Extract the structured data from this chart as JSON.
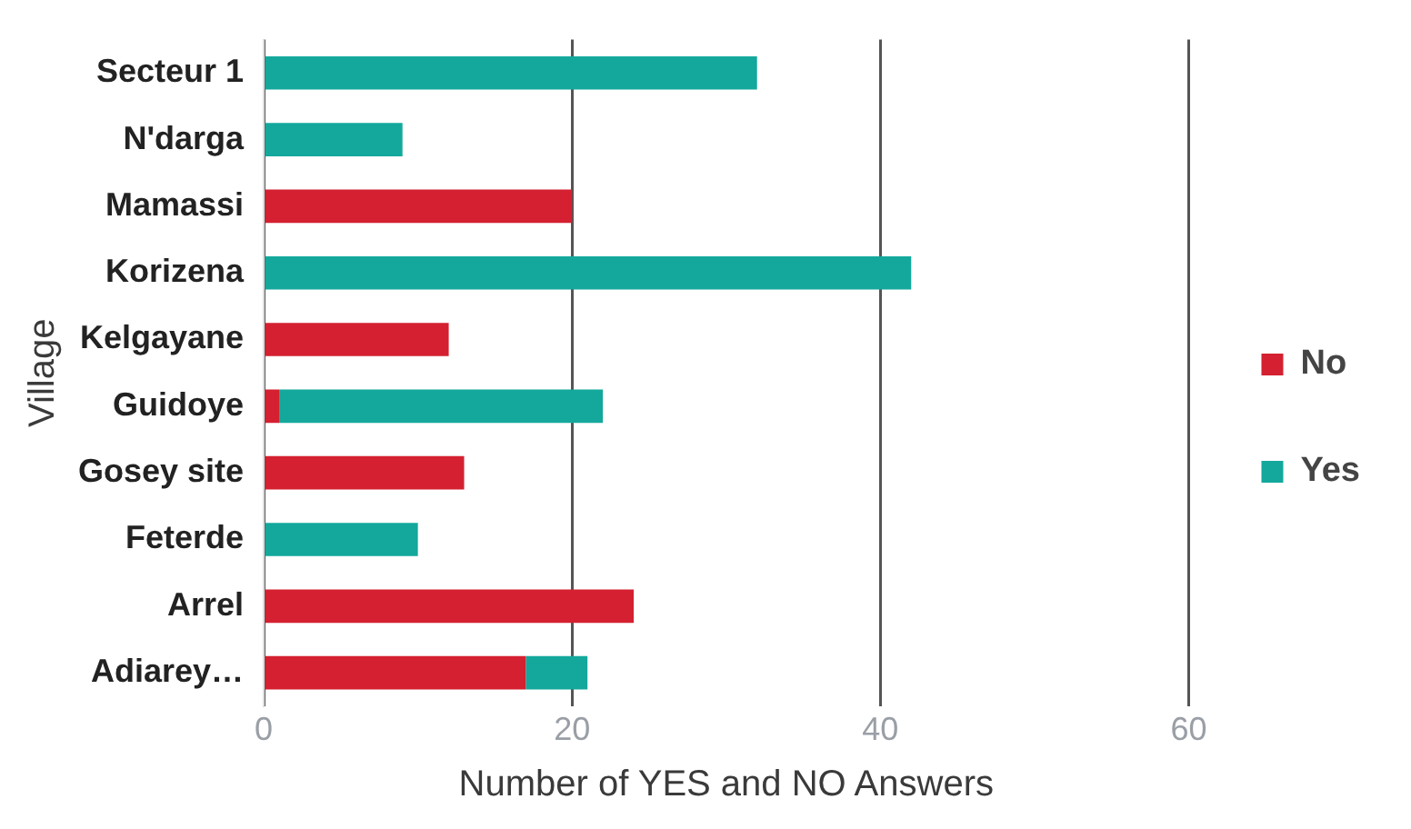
{
  "chart_data": {
    "type": "bar",
    "orientation": "horizontal",
    "stacked": true,
    "xlabel": "Number of YES and NO Answers",
    "ylabel": "Village",
    "categories": [
      "Secteur 1",
      "N'darga",
      "Mamassi",
      "Korizena",
      "Kelgayane",
      "Guidoye",
      "Gosey site",
      "Feterde",
      "Arrel",
      "Adiarey…"
    ],
    "series": [
      {
        "name": "No",
        "color": "#d42030",
        "values": [
          null,
          null,
          20,
          null,
          12,
          1,
          13,
          null,
          24,
          17
        ]
      },
      {
        "name": "Yes",
        "color": "#14a89c",
        "values": [
          32,
          9,
          null,
          42,
          null,
          21,
          null,
          10,
          null,
          4
        ]
      }
    ],
    "xlim": [
      0,
      60
    ],
    "xticks": [
      0,
      20,
      40,
      60
    ],
    "grid": "x",
    "legend": "right"
  }
}
